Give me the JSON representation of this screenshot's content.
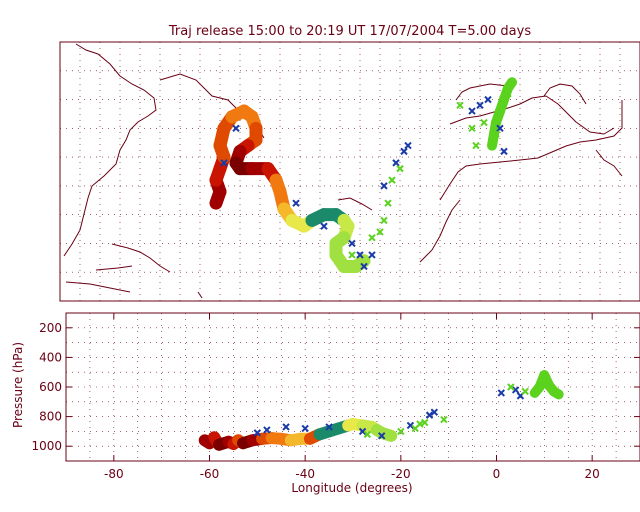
{
  "title": "Traj release 15:00 to 20:19 UT 17/07/2004     T=5.00 days",
  "colors": {
    "axis": "#6a0014",
    "grid": "#6a0014",
    "coast": "#6a0014",
    "marker_blue": "#1a3aa8",
    "marker_green": "#5ad21e"
  },
  "chart_data": [
    {
      "type": "map-trajectory",
      "name": "map-panel",
      "grid": true,
      "trajectory_colors": [
        "#7a0000",
        "#a00000",
        "#c81400",
        "#e04a00",
        "#f07a10",
        "#f4b82a",
        "#e8e84a",
        "#c8e848",
        "#a0e040",
        "#1a8a6a"
      ],
      "trajectory": [
        {
          "lon": -61,
          "lat": 27,
          "c": 1
        },
        {
          "lon": -60,
          "lat": 29,
          "c": 1
        },
        {
          "lon": -61,
          "lat": 31,
          "c": 2
        },
        {
          "lon": -60,
          "lat": 33,
          "c": 2
        },
        {
          "lon": -59,
          "lat": 35,
          "c": 3
        },
        {
          "lon": -60,
          "lat": 37,
          "c": 3
        },
        {
          "lon": -59,
          "lat": 40,
          "c": 3
        },
        {
          "lon": -57,
          "lat": 42,
          "c": 4
        },
        {
          "lon": -54,
          "lat": 43,
          "c": 4
        },
        {
          "lon": -52,
          "lat": 42,
          "c": 4
        },
        {
          "lon": -51,
          "lat": 40,
          "c": 3
        },
        {
          "lon": -51,
          "lat": 38,
          "c": 3
        },
        {
          "lon": -53,
          "lat": 37,
          "c": 2
        },
        {
          "lon": -55,
          "lat": 36,
          "c": 1
        },
        {
          "lon": -56,
          "lat": 34,
          "c": 0
        },
        {
          "lon": -55,
          "lat": 33,
          "c": 0
        },
        {
          "lon": -52,
          "lat": 33,
          "c": 1
        },
        {
          "lon": -48,
          "lat": 33,
          "c": 2
        },
        {
          "lon": -46,
          "lat": 31,
          "c": 4
        },
        {
          "lon": -45,
          "lat": 29,
          "c": 4
        },
        {
          "lon": -44,
          "lat": 26,
          "c": 5
        },
        {
          "lon": -42,
          "lat": 24,
          "c": 6
        },
        {
          "lon": -39,
          "lat": 23,
          "c": 6
        },
        {
          "lon": -37,
          "lat": 24,
          "c": 9
        },
        {
          "lon": -34,
          "lat": 25,
          "c": 9
        },
        {
          "lon": -31,
          "lat": 25,
          "c": 9
        },
        {
          "lon": -29,
          "lat": 24,
          "c": 7
        },
        {
          "lon": -28,
          "lat": 23,
          "c": 7
        },
        {
          "lon": -29,
          "lat": 21,
          "c": 8
        },
        {
          "lon": -31,
          "lat": 20,
          "c": 8
        },
        {
          "lon": -31,
          "lat": 18,
          "c": 8
        },
        {
          "lon": -29,
          "lat": 16,
          "c": 8
        },
        {
          "lon": -26,
          "lat": 16,
          "c": 8
        },
        {
          "lon": -24,
          "lat": 17,
          "c": 8
        }
      ],
      "east_trajectory": [
        {
          "lon": 8,
          "lat": 37
        },
        {
          "lon": 8.5,
          "lat": 39
        },
        {
          "lon": 9,
          "lat": 41
        },
        {
          "lon": 10,
          "lat": 43
        },
        {
          "lon": 11,
          "lat": 45
        },
        {
          "lon": 12,
          "lat": 47
        },
        {
          "lon": 13,
          "lat": 48
        }
      ],
      "markers": [
        {
          "lon": -59,
          "lat": 34,
          "k": "b"
        },
        {
          "lon": -56,
          "lat": 40,
          "k": "b"
        },
        {
          "lon": -41,
          "lat": 27,
          "k": "b"
        },
        {
          "lon": -34,
          "lat": 23,
          "k": "b"
        },
        {
          "lon": -27,
          "lat": 20,
          "k": "b"
        },
        {
          "lon": -25,
          "lat": 18,
          "k": "b"
        },
        {
          "lon": -24,
          "lat": 16,
          "k": "b"
        },
        {
          "lon": -22,
          "lat": 18,
          "k": "b"
        },
        {
          "lon": -19,
          "lat": 30,
          "k": "b"
        },
        {
          "lon": -16,
          "lat": 34,
          "k": "b"
        },
        {
          "lon": -14,
          "lat": 36,
          "k": "b"
        },
        {
          "lon": -13,
          "lat": 37,
          "k": "b"
        },
        {
          "lon": 3,
          "lat": 43,
          "k": "b"
        },
        {
          "lon": 5,
          "lat": 44,
          "k": "b"
        },
        {
          "lon": 7,
          "lat": 45,
          "k": "b"
        },
        {
          "lon": 10,
          "lat": 40,
          "k": "b"
        },
        {
          "lon": 11,
          "lat": 36,
          "k": "b"
        },
        {
          "lon": -22,
          "lat": 21,
          "k": "g"
        },
        {
          "lon": -20,
          "lat": 22,
          "k": "g"
        },
        {
          "lon": -19,
          "lat": 24,
          "k": "g"
        },
        {
          "lon": -18,
          "lat": 27,
          "k": "g"
        },
        {
          "lon": -17,
          "lat": 31,
          "k": "g"
        },
        {
          "lon": -15,
          "lat": 33,
          "k": "g"
        },
        {
          "lon": 0,
          "lat": 44,
          "k": "g"
        },
        {
          "lon": 3,
          "lat": 40,
          "k": "g"
        },
        {
          "lon": 4,
          "lat": 37,
          "k": "g"
        },
        {
          "lon": 6,
          "lat": 41,
          "k": "g"
        },
        {
          "lon": 9,
          "lat": 39,
          "k": "g"
        },
        {
          "lon": 12,
          "lat": 46,
          "k": "g"
        },
        {
          "lon": -27,
          "lat": 18,
          "k": "g"
        }
      ]
    },
    {
      "type": "scatter",
      "name": "pressure-panel",
      "xlabel": "Longitude  (degrees)",
      "ylabel": "Pressure  (hPa)",
      "xlim": [
        -90,
        30
      ],
      "ylim": [
        1100,
        100
      ],
      "xticks": [
        -80,
        -60,
        -40,
        -20,
        0,
        20
      ],
      "yticks": [
        200,
        400,
        600,
        800,
        1000
      ],
      "grid": true,
      "trajectory": [
        {
          "lon": -61,
          "p": 960,
          "c": 1
        },
        {
          "lon": -60,
          "p": 980,
          "c": 1
        },
        {
          "lon": -59,
          "p": 940,
          "c": 2
        },
        {
          "lon": -58,
          "p": 990,
          "c": 0
        },
        {
          "lon": -56,
          "p": 970,
          "c": 1
        },
        {
          "lon": -55,
          "p": 985,
          "c": 2
        },
        {
          "lon": -54,
          "p": 960,
          "c": 3
        },
        {
          "lon": -53,
          "p": 980,
          "c": 0
        },
        {
          "lon": -51,
          "p": 960,
          "c": 1
        },
        {
          "lon": -49,
          "p": 950,
          "c": 3
        },
        {
          "lon": -47,
          "p": 945,
          "c": 4
        },
        {
          "lon": -45,
          "p": 950,
          "c": 4
        },
        {
          "lon": -43,
          "p": 960,
          "c": 5
        },
        {
          "lon": -41,
          "p": 950,
          "c": 5
        },
        {
          "lon": -39,
          "p": 950,
          "c": 3
        },
        {
          "lon": -37,
          "p": 920,
          "c": 9
        },
        {
          "lon": -35,
          "p": 900,
          "c": 9
        },
        {
          "lon": -33,
          "p": 880,
          "c": 9
        },
        {
          "lon": -31,
          "p": 860,
          "c": 6
        },
        {
          "lon": -30,
          "p": 850,
          "c": 6
        },
        {
          "lon": -28,
          "p": 860,
          "c": 7
        },
        {
          "lon": -26,
          "p": 870,
          "c": 7
        },
        {
          "lon": -25,
          "p": 890,
          "c": 8
        },
        {
          "lon": -24,
          "p": 910,
          "c": 8
        },
        {
          "lon": -22,
          "p": 930,
          "c": 8
        }
      ],
      "east_trajectory": [
        {
          "lon": 8,
          "p": 640
        },
        {
          "lon": 9,
          "p": 600
        },
        {
          "lon": 9.5,
          "p": 560
        },
        {
          "lon": 10,
          "p": 520
        },
        {
          "lon": 11,
          "p": 590
        },
        {
          "lon": 12,
          "p": 630
        },
        {
          "lon": 13,
          "p": 650
        }
      ],
      "markers": [
        {
          "lon": -50,
          "p": 910,
          "k": "b"
        },
        {
          "lon": -48,
          "p": 890,
          "k": "b"
        },
        {
          "lon": -44,
          "p": 870,
          "k": "b"
        },
        {
          "lon": -40,
          "p": 880,
          "k": "b"
        },
        {
          "lon": -35,
          "p": 870,
          "k": "b"
        },
        {
          "lon": -28,
          "p": 900,
          "k": "b"
        },
        {
          "lon": -24,
          "p": 930,
          "k": "b"
        },
        {
          "lon": -18,
          "p": 860,
          "k": "b"
        },
        {
          "lon": -14,
          "p": 790,
          "k": "b"
        },
        {
          "lon": -13,
          "p": 770,
          "k": "b"
        },
        {
          "lon": 1,
          "p": 640,
          "k": "b"
        },
        {
          "lon": 4,
          "p": 620,
          "k": "b"
        },
        {
          "lon": 5,
          "p": 660,
          "k": "b"
        },
        {
          "lon": -20,
          "p": 900,
          "k": "g"
        },
        {
          "lon": -17,
          "p": 880,
          "k": "g"
        },
        {
          "lon": -15,
          "p": 840,
          "k": "g"
        },
        {
          "lon": -11,
          "p": 820,
          "k": "g"
        },
        {
          "lon": -16,
          "p": 850,
          "k": "g"
        },
        {
          "lon": 3,
          "p": 600,
          "k": "g"
        },
        {
          "lon": 6,
          "p": 630,
          "k": "g"
        },
        {
          "lon": -27,
          "p": 920,
          "k": "g"
        }
      ]
    }
  ]
}
